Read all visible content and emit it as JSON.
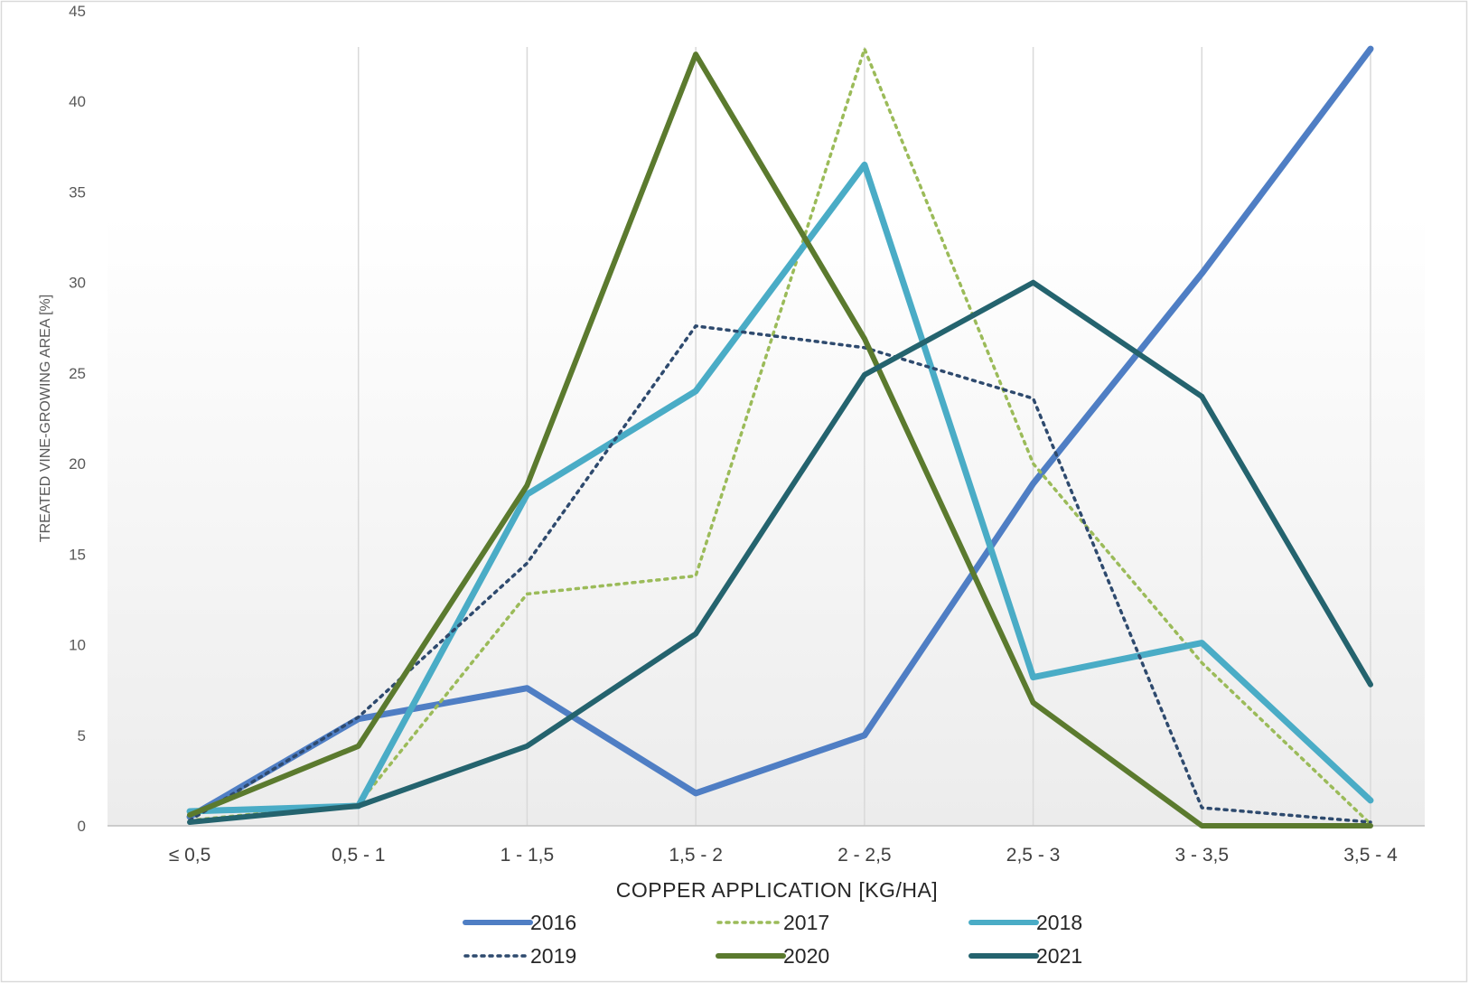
{
  "chart_data": {
    "type": "line",
    "title": "",
    "xlabel": "COPPER APPLICATION [KG/HA]",
    "ylabel": "TREATED VINE-GROWING AREA [%]",
    "ylim": [
      0,
      45
    ],
    "yticks": [
      0,
      5,
      10,
      15,
      20,
      25,
      30,
      35,
      40,
      45
    ],
    "categories": [
      "≤ 0,5",
      "0,5 - 1",
      "1 - 1,5",
      "1,5 - 2",
      "2 - 2,5",
      "2,5 - 3",
      "3 - 3,5",
      "3,5 - 4"
    ],
    "grid": "vertical",
    "legend_position": "bottom",
    "series": [
      {
        "name": "2016",
        "color": "#4f7ec4",
        "style": "solid-thick",
        "values": [
          0.5,
          5.9,
          7.6,
          1.8,
          5.0,
          18.9,
          30.5,
          42.9
        ]
      },
      {
        "name": "2017",
        "color": "#9bbb59",
        "style": "dotted",
        "values": [
          0.3,
          1.2,
          12.8,
          13.8,
          42.9,
          20.0,
          9.0,
          0.1
        ]
      },
      {
        "name": "2018",
        "color": "#4aacc6",
        "style": "solid-thick",
        "values": [
          0.8,
          1.1,
          18.3,
          24.0,
          36.5,
          8.2,
          10.1,
          1.4
        ]
      },
      {
        "name": "2019",
        "color": "#2e4a6e",
        "style": "dotted",
        "values": [
          0.3,
          6.0,
          14.5,
          27.6,
          26.4,
          23.6,
          1.0,
          0.2
        ]
      },
      {
        "name": "2020",
        "color": "#5b7a2e",
        "style": "solid",
        "values": [
          0.6,
          4.4,
          18.8,
          42.6,
          26.9,
          6.8,
          0.0,
          0.0
        ]
      },
      {
        "name": "2021",
        "color": "#24636e",
        "style": "solid",
        "values": [
          0.2,
          1.1,
          4.4,
          10.6,
          24.9,
          30.0,
          23.7,
          7.8
        ]
      }
    ]
  }
}
